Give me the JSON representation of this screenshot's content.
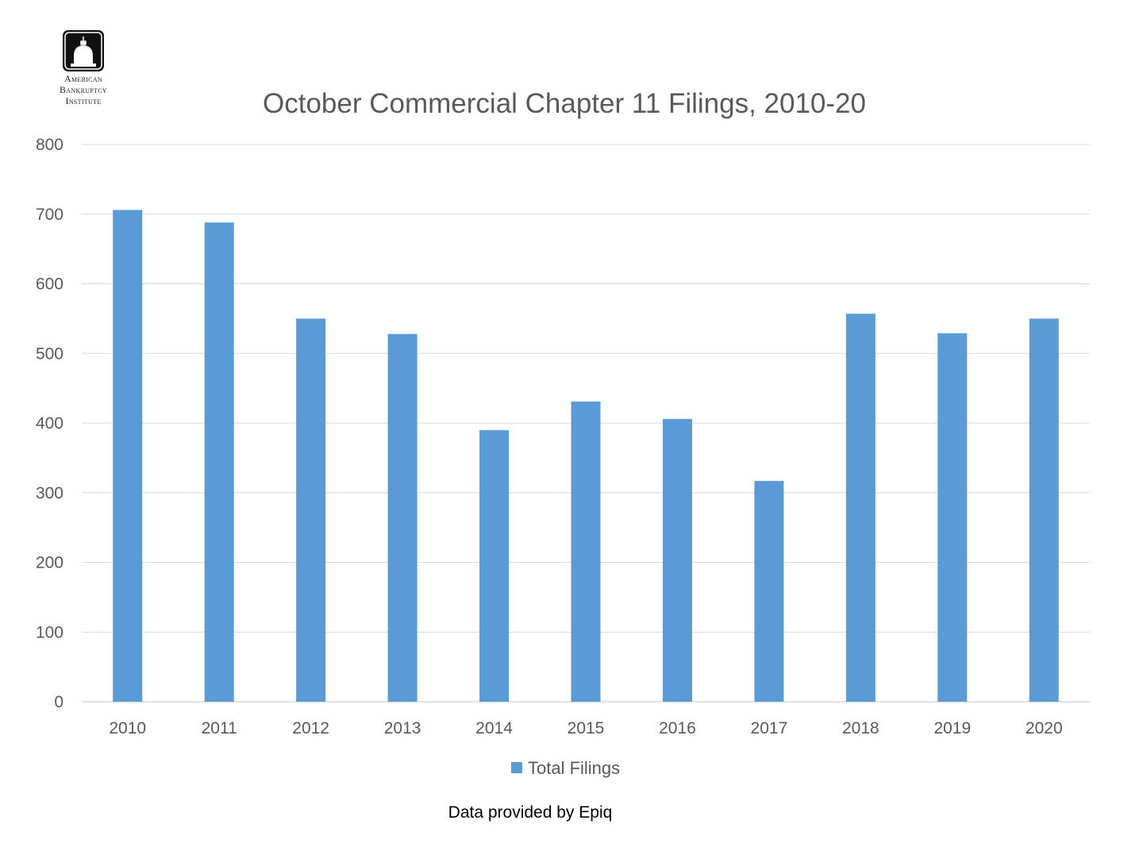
{
  "logo": {
    "icon": "capitol-dome-icon",
    "lines": [
      "American",
      "Bankruptcy",
      "Institute"
    ]
  },
  "source_note": "Data provided by Epiq",
  "chart_data": {
    "type": "bar",
    "title": "October Commercial Chapter 11 Filings, 2010-20",
    "xlabel": "",
    "ylabel": "",
    "categories": [
      "2010",
      "2011",
      "2012",
      "2013",
      "2014",
      "2015",
      "2016",
      "2017",
      "2018",
      "2019",
      "2020"
    ],
    "series": [
      {
        "name": "Total Filings",
        "values": [
          706,
          688,
          550,
          528,
          390,
          431,
          406,
          317,
          557,
          529,
          550
        ],
        "color": "#5b9bd5"
      }
    ],
    "ylim": [
      0,
      800
    ],
    "yticks": [
      "0",
      "100",
      "200",
      "300",
      "400",
      "500",
      "600",
      "700",
      "800"
    ],
    "grid": true,
    "gridColor": "#d9d9d9",
    "legend": "bottom-center"
  }
}
